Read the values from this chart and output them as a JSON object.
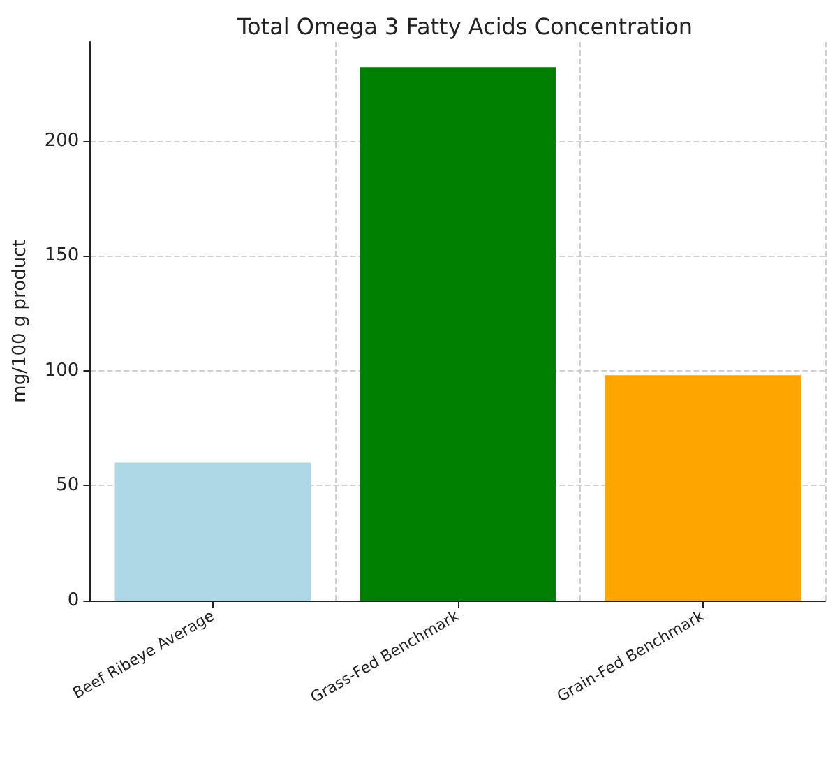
{
  "chart_data": {
    "type": "bar",
    "title": "Total Omega 3 Fatty Acids Concentration",
    "ylabel": "mg/100 g product",
    "categories": [
      "Beef Ribeye Average",
      "Grass-Fed Benchmark",
      "Grain-Fed Benchmark"
    ],
    "values": [
      60,
      232,
      98
    ],
    "colors": [
      "#add8e6",
      "#008000",
      "#ffa500"
    ],
    "ylim": [
      0,
      243
    ],
    "yticks": [
      0,
      50,
      100,
      150,
      200
    ],
    "grid": true
  }
}
